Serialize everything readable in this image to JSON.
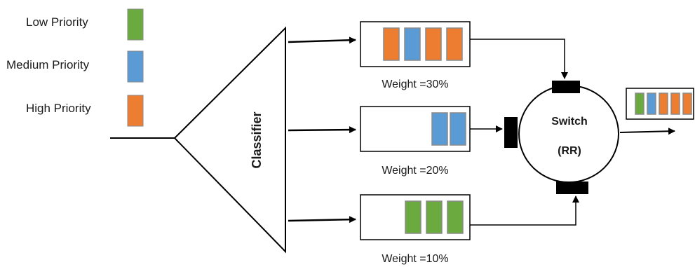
{
  "legend": {
    "low": {
      "label": "Low Priority",
      "color": "#6aaa3f"
    },
    "medium": {
      "label": "Medium Priority",
      "color": "#5b9bd5"
    },
    "high": {
      "label": "High Priority",
      "color": "#ed7d31"
    }
  },
  "classifier": {
    "label": "Classifier"
  },
  "queues": [
    {
      "id": "high",
      "weight_label": "Weight =30%",
      "packets": [
        "high",
        "medium",
        "high",
        "high"
      ]
    },
    {
      "id": "medium",
      "weight_label": "Weight =20%",
      "packets": [
        "medium",
        "medium"
      ]
    },
    {
      "id": "low",
      "weight_label": "Weight =10%",
      "packets": [
        "low",
        "low",
        "low"
      ]
    }
  ],
  "switch": {
    "label": "Switch",
    "sublabel": "(RR)"
  },
  "output": {
    "packets": [
      "low",
      "medium",
      "high",
      "high",
      "high"
    ]
  },
  "colors": {
    "packet_border": "#8a8a8a",
    "line": "#000000"
  }
}
